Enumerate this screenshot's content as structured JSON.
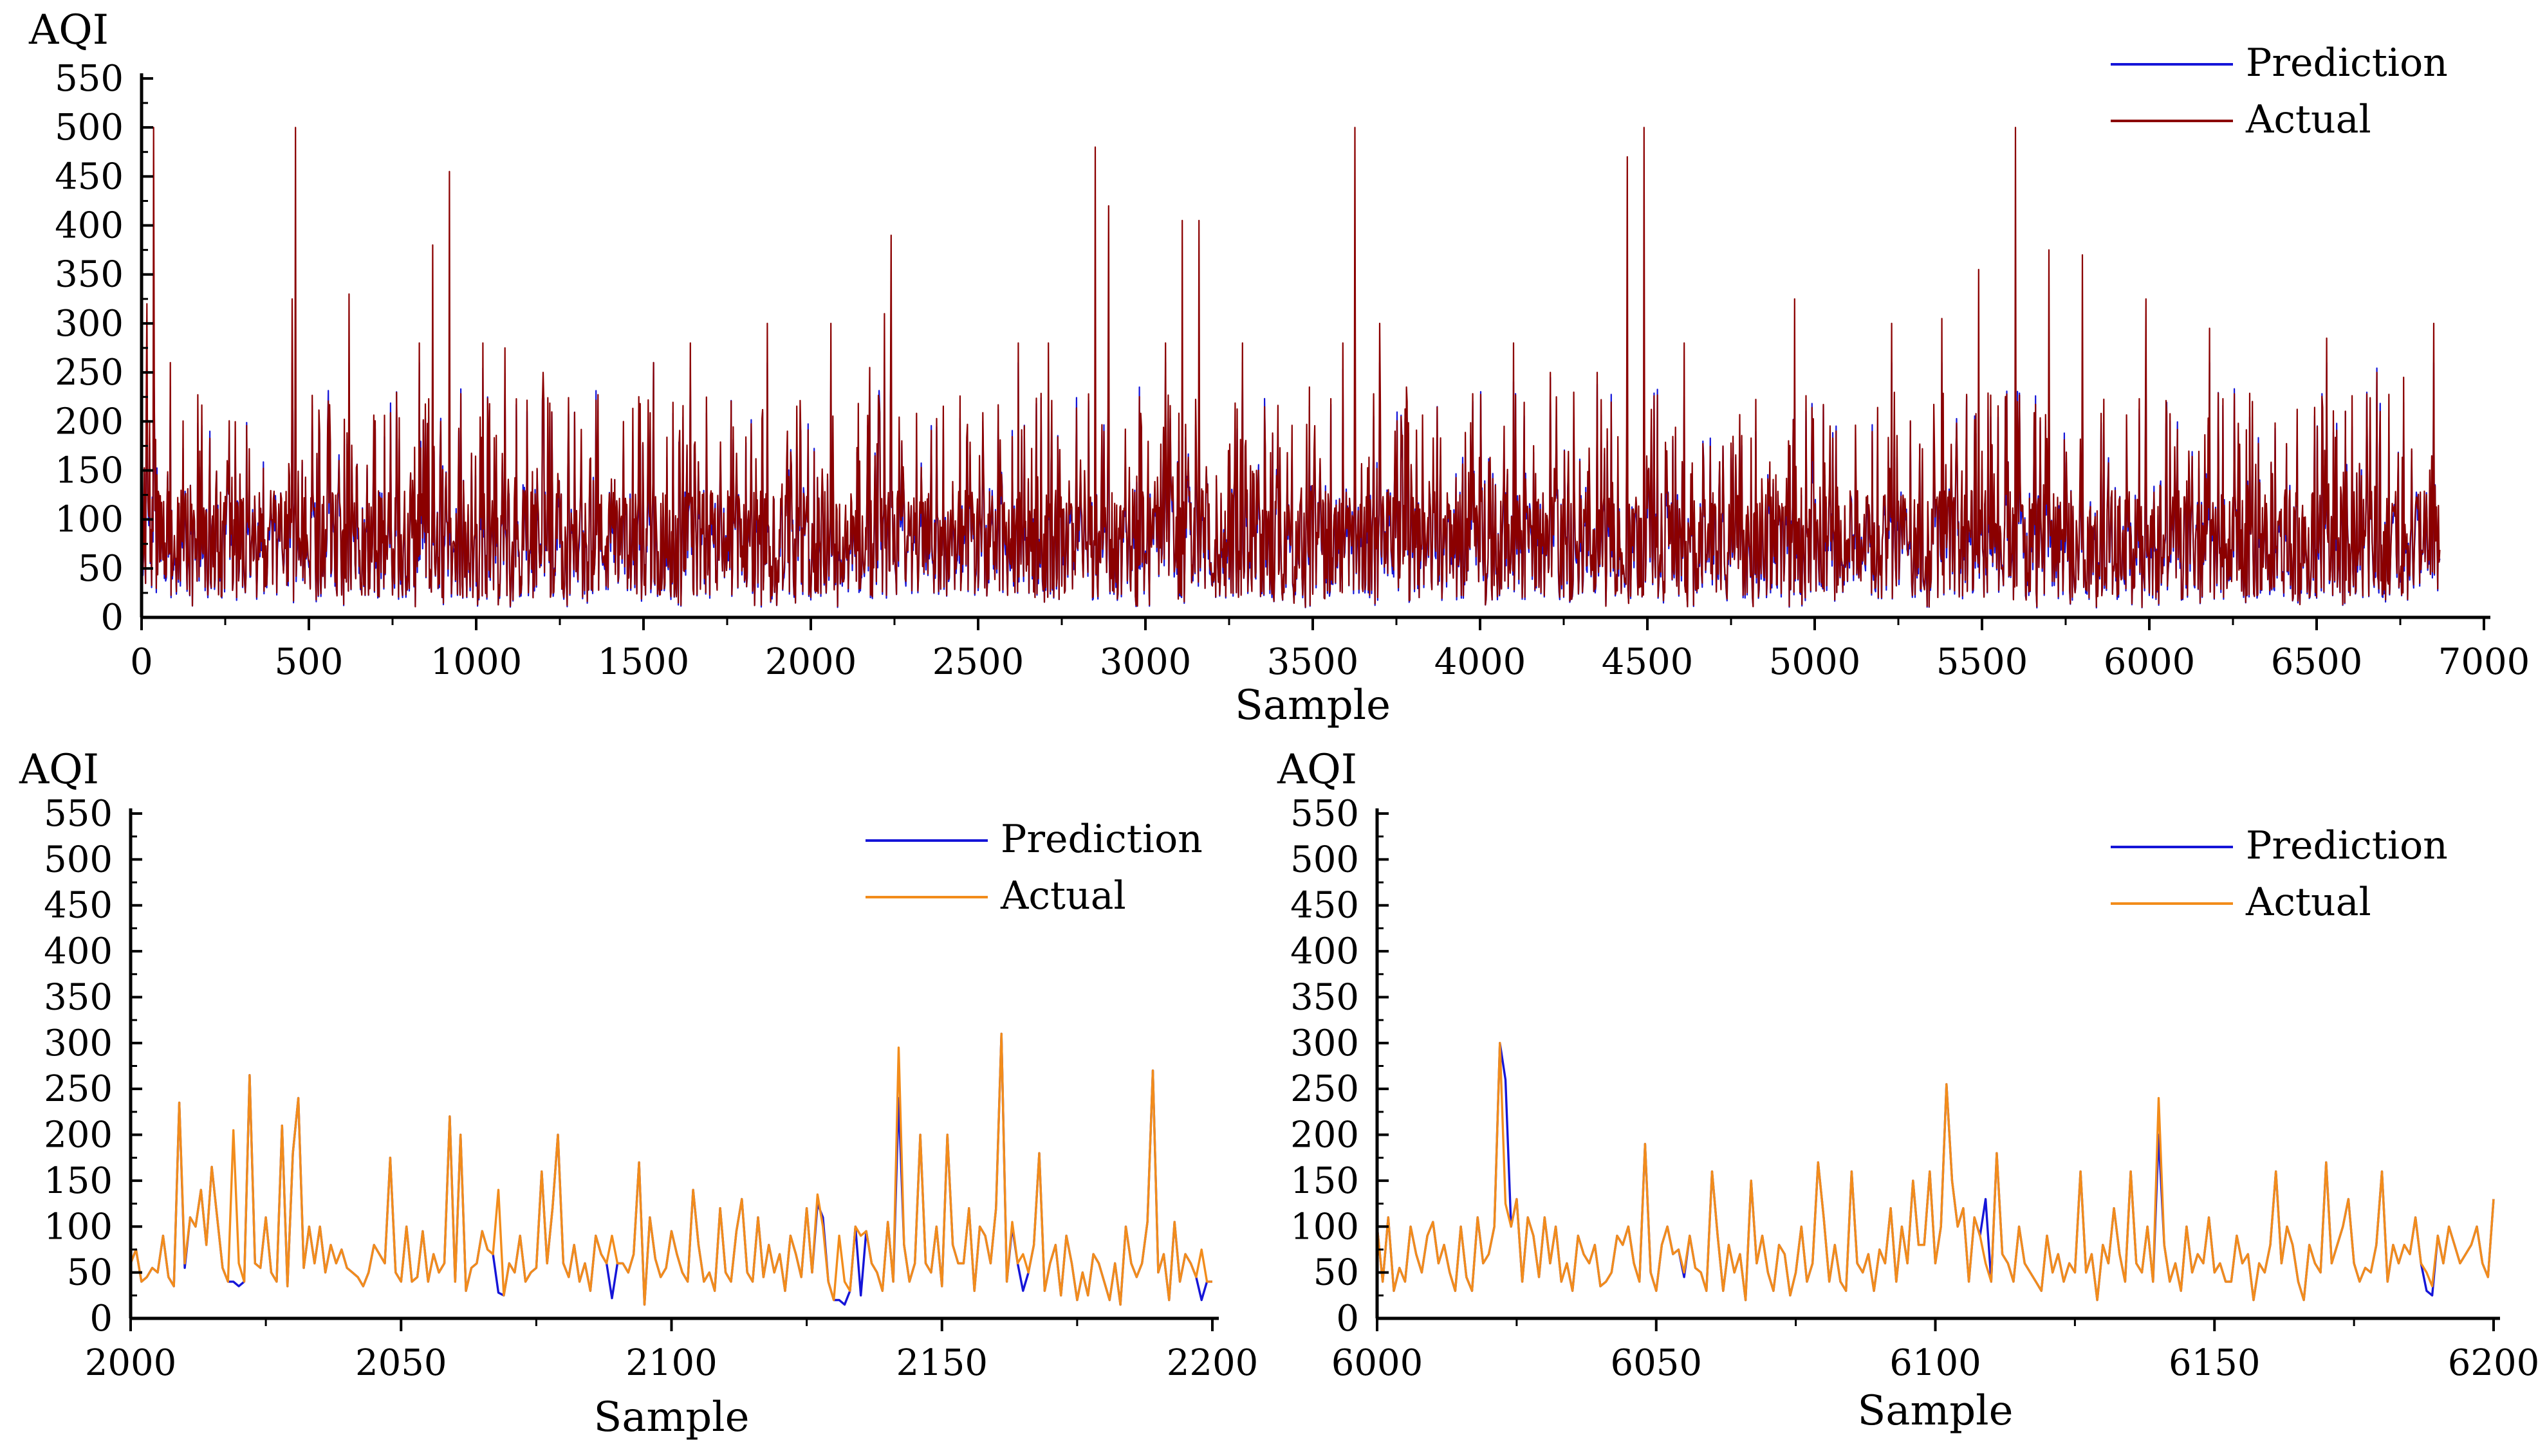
{
  "colors": {
    "prediction": "#1515d8",
    "actual_top": "#8b0000",
    "actual_zoom": "#f28c1b",
    "axis": "#000000",
    "background": "#ffffff"
  },
  "chart_data": [
    {
      "id": "overview",
      "type": "line",
      "title": "",
      "xlabel": "Sample",
      "ylabel": "AQI",
      "xlim": [
        0,
        7000
      ],
      "ylim": [
        0,
        550
      ],
      "x_ticks": [
        0,
        500,
        1000,
        1500,
        2000,
        2500,
        3000,
        3500,
        4000,
        4500,
        5000,
        5500,
        6000,
        6500,
        7000
      ],
      "y_ticks": [
        0,
        50,
        100,
        150,
        200,
        250,
        300,
        350,
        400,
        450,
        500,
        550
      ],
      "legend": {
        "placement": "top-right",
        "entries": [
          "Prediction",
          "Actual"
        ]
      },
      "n_samples": 6870,
      "baseline_range": [
        20,
        130
      ],
      "actual_peaks": [
        [
          15,
          320
        ],
        [
          35,
          500
        ],
        [
          85,
          260
        ],
        [
          450,
          325
        ],
        [
          460,
          500
        ],
        [
          620,
          330
        ],
        [
          830,
          280
        ],
        [
          870,
          380
        ],
        [
          920,
          455
        ],
        [
          1020,
          280
        ],
        [
          1085,
          275
        ],
        [
          1200,
          250
        ],
        [
          1530,
          260
        ],
        [
          1640,
          280
        ],
        [
          1870,
          300
        ],
        [
          2060,
          300
        ],
        [
          2175,
          255
        ],
        [
          2220,
          310
        ],
        [
          2240,
          390
        ],
        [
          2620,
          280
        ],
        [
          2710,
          280
        ],
        [
          2850,
          480
        ],
        [
          2890,
          420
        ],
        [
          3060,
          280
        ],
        [
          3110,
          405
        ],
        [
          3160,
          405
        ],
        [
          3290,
          280
        ],
        [
          3490,
          235
        ],
        [
          3590,
          280
        ],
        [
          3625,
          500
        ],
        [
          3700,
          300
        ],
        [
          3780,
          235
        ],
        [
          4100,
          280
        ],
        [
          4210,
          250
        ],
        [
          4350,
          250
        ],
        [
          4440,
          470
        ],
        [
          4490,
          500
        ],
        [
          4610,
          280
        ],
        [
          4940,
          325
        ],
        [
          5230,
          300
        ],
        [
          5380,
          305
        ],
        [
          5490,
          355
        ],
        [
          5600,
          500
        ],
        [
          5700,
          375
        ],
        [
          5800,
          370
        ],
        [
          5990,
          325
        ],
        [
          6180,
          295
        ],
        [
          6530,
          285
        ],
        [
          6680,
          250
        ],
        [
          6760,
          245
        ],
        [
          6850,
          300
        ]
      ]
    },
    {
      "id": "zoom-2000",
      "type": "line",
      "title": "",
      "xlabel": "Sample",
      "ylabel": "AQI",
      "xlim": [
        2000,
        2200
      ],
      "ylim": [
        0,
        550
      ],
      "x_ticks": [
        2000,
        2050,
        2100,
        2150,
        2200
      ],
      "y_ticks": [
        0,
        50,
        100,
        150,
        200,
        250,
        300,
        350,
        400,
        450,
        500,
        550
      ],
      "legend": {
        "placement": "top-right",
        "entries": [
          "Prediction",
          "Actual"
        ]
      },
      "x_start": 2000,
      "actual": [
        60,
        75,
        40,
        45,
        55,
        50,
        90,
        45,
        35,
        235,
        60,
        110,
        100,
        140,
        80,
        165,
        110,
        55,
        40,
        205,
        60,
        40,
        265,
        60,
        55,
        110,
        50,
        40,
        210,
        35,
        180,
        240,
        55,
        100,
        60,
        100,
        50,
        80,
        60,
        75,
        55,
        50,
        45,
        35,
        50,
        80,
        70,
        60,
        175,
        50,
        40,
        100,
        40,
        45,
        95,
        40,
        70,
        50,
        60,
        220,
        40,
        200,
        30,
        55,
        60,
        95,
        75,
        70,
        140,
        25,
        60,
        50,
        90,
        40,
        50,
        55,
        160,
        60,
        120,
        200,
        60,
        45,
        80,
        40,
        60,
        30,
        90,
        70,
        60,
        90,
        60,
        60,
        50,
        70,
        170,
        15,
        110,
        65,
        45,
        55,
        95,
        70,
        50,
        40,
        140,
        80,
        40,
        50,
        30,
        120,
        50,
        40,
        95,
        130,
        50,
        40,
        110,
        45,
        80,
        50,
        70,
        30,
        90,
        70,
        45,
        120,
        50,
        135,
        100,
        40,
        20,
        90,
        40,
        30,
        100,
        90,
        95,
        60,
        50,
        30,
        105,
        40,
        295,
        80,
        40,
        60,
        200,
        60,
        50,
        100,
        35,
        200,
        80,
        60,
        60,
        120,
        30,
        100,
        90,
        60,
        120,
        310,
        40,
        105,
        60,
        70,
        50,
        80,
        180,
        30,
        60,
        80,
        25,
        90,
        60,
        20,
        50,
        25,
        70,
        60,
        40,
        20,
        60,
        15,
        100,
        60,
        45,
        60,
        105,
        270,
        50,
        70,
        20,
        105,
        40,
        70,
        60,
        45,
        75,
        40,
        40
      ],
      "prediction_tweaks": [
        [
          10,
          55
        ],
        [
          19,
          40
        ],
        [
          20,
          35
        ],
        [
          68,
          28
        ],
        [
          89,
          22
        ],
        [
          127,
          125
        ],
        [
          128,
          110
        ],
        [
          131,
          20
        ],
        [
          132,
          15
        ],
        [
          135,
          25
        ],
        [
          142,
          240
        ],
        [
          163,
          100
        ],
        [
          165,
          30
        ],
        [
          198,
          20
        ]
      ]
    },
    {
      "id": "zoom-6000",
      "type": "line",
      "title": "",
      "xlabel": "Sample",
      "ylabel": "AQI",
      "xlim": [
        6000,
        6200
      ],
      "ylim": [
        0,
        550
      ],
      "x_ticks": [
        6000,
        6050,
        6100,
        6150,
        6200
      ],
      "y_ticks": [
        0,
        50,
        100,
        150,
        200,
        250,
        300,
        350,
        400,
        450,
        500,
        550
      ],
      "legend": {
        "placement": "top-right",
        "entries": [
          "Prediction",
          "Actual"
        ]
      },
      "x_start": 6000,
      "actual": [
        100,
        40,
        110,
        30,
        55,
        40,
        100,
        70,
        50,
        90,
        105,
        60,
        80,
        50,
        30,
        100,
        45,
        30,
        110,
        60,
        70,
        100,
        300,
        125,
        100,
        130,
        40,
        110,
        90,
        45,
        110,
        60,
        100,
        40,
        60,
        30,
        90,
        70,
        60,
        80,
        35,
        40,
        50,
        90,
        80,
        100,
        60,
        40,
        190,
        50,
        30,
        80,
        100,
        70,
        75,
        50,
        90,
        55,
        50,
        30,
        160,
        90,
        30,
        80,
        50,
        70,
        20,
        150,
        60,
        90,
        50,
        30,
        80,
        70,
        25,
        50,
        100,
        40,
        60,
        170,
        110,
        40,
        80,
        40,
        30,
        160,
        60,
        50,
        70,
        30,
        75,
        60,
        120,
        40,
        100,
        60,
        150,
        80,
        80,
        160,
        60,
        100,
        255,
        150,
        100,
        120,
        40,
        110,
        90,
        60,
        40,
        180,
        70,
        60,
        40,
        100,
        60,
        50,
        40,
        30,
        90,
        50,
        70,
        40,
        60,
        50,
        160,
        50,
        70,
        20,
        80,
        60,
        120,
        70,
        40,
        160,
        60,
        50,
        100,
        40,
        240,
        80,
        40,
        60,
        30,
        100,
        50,
        70,
        60,
        110,
        50,
        60,
        40,
        40,
        90,
        60,
        70,
        20,
        60,
        50,
        80,
        160,
        60,
        100,
        80,
        40,
        20,
        80,
        60,
        50,
        170,
        60,
        80,
        100,
        130,
        60,
        40,
        55,
        50,
        80,
        160,
        40,
        80,
        60,
        80,
        70,
        110,
        60,
        50,
        35,
        90,
        60,
        100,
        80,
        60,
        70,
        80,
        100,
        60,
        45,
        130
      ],
      "prediction_tweaks": [
        [
          23,
          260
        ],
        [
          55,
          45
        ],
        [
          109,
          130
        ],
        [
          140,
          200
        ],
        [
          188,
          30
        ],
        [
          189,
          25
        ],
        [
          198,
          60
        ]
      ]
    }
  ]
}
